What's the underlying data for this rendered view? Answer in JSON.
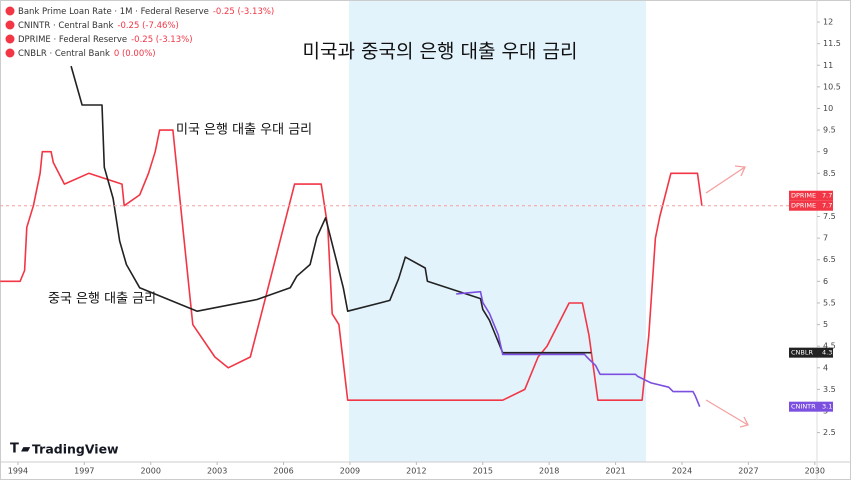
{
  "chart_data": {
    "type": "line",
    "title": "미국과 중국의 은행 대출 우대 금리",
    "legend": [
      {
        "name": "Bank Prime Loan Rate · 1M · Federal Reserve",
        "change": "-0.25 (-3.13%)",
        "color": "#f23645"
      },
      {
        "name": "CNINTR · Central Bank",
        "change": "-0.25 (-7.46%)",
        "color": "#f23645"
      },
      {
        "name": "DPRIME · Federal Reserve",
        "change": "-0.25 (-3.13%)",
        "color": "#f23645"
      },
      {
        "name": "CNBLR · Central Bank",
        "change": "0 (0.00%)",
        "color": "#f23645"
      }
    ],
    "annotations": [
      "미국 은행 대출 우대 금리",
      "중국 은행 대출 금리"
    ],
    "watermark": "TradingView",
    "xlim": [
      1993.19,
      2030.1
    ],
    "ylim": [
      1.82,
      12.51
    ],
    "xticks": [
      1994,
      1997,
      2000,
      2003,
      2006,
      2009,
      2012,
      2015,
      2018,
      2021,
      2024,
      2027,
      2030
    ],
    "yticks": [
      12,
      11.5,
      11,
      10.5,
      10,
      9.5,
      9,
      8.5,
      8,
      7.5,
      7,
      6.5,
      6,
      5.5,
      5,
      4.5,
      4,
      3.5,
      3,
      2.5
    ],
    "series": [
      {
        "name": "DPRIME",
        "color": "#f23645",
        "x": [
          1993.2,
          1994.1,
          1994.3,
          1994.4,
          1994.7,
          1995.0,
          1995.1,
          1995.5,
          1995.6,
          1996.1,
          1997.2,
          1998.7,
          1998.8,
          1999.5,
          1999.9,
          2000.2,
          2000.4,
          2001.0,
          2001.1,
          2001.5,
          2001.9,
          2002.9,
          2003.5,
          2004.5,
          2005.0,
          2005.5,
          2006.0,
          2006.5,
          2007.7,
          2008.0,
          2008.2,
          2008.5,
          2008.9,
          2015.9,
          2016.9,
          2017.5,
          2017.9,
          2018.9,
          2019.5,
          2019.8,
          2020.2,
          2022.2,
          2022.5,
          2022.8,
          2023.0,
          2023.5,
          2024.7,
          2024.9
        ],
        "values": [
          6,
          6,
          6.25,
          7.25,
          7.75,
          8.5,
          9,
          9,
          8.75,
          8.25,
          8.5,
          8.25,
          7.75,
          8,
          8.5,
          9,
          9.5,
          9.5,
          9,
          7,
          5,
          4.25,
          4,
          4.25,
          5.25,
          6.25,
          7.25,
          8.25,
          8.25,
          7.25,
          5.25,
          5,
          3.25,
          3.25,
          3.5,
          4.25,
          4.5,
          5.5,
          5.5,
          4.75,
          3.25,
          3.25,
          4.75,
          7,
          7.5,
          8.5,
          8.5,
          7.75
        ]
      },
      {
        "name": "CNBLR",
        "color": "#222222",
        "x": [
          1996.4,
          1996.9,
          1997.8,
          1997.9,
          1998.3,
          1998.6,
          1998.9,
          1999.5,
          2002.1,
          2004.8,
          2006.3,
          2006.6,
          2007.2,
          2007.5,
          2007.9,
          2008.7,
          2008.9,
          2010.8,
          2011.0,
          2011.2,
          2011.5,
          2012.4,
          2012.5,
          2014.9,
          2015.0,
          2015.3,
          2015.5,
          2015.7,
          2015.9,
          2019.9
        ],
        "values": [
          10.98,
          10.08,
          10.08,
          8.64,
          7.92,
          6.93,
          6.39,
          5.85,
          5.31,
          5.58,
          5.85,
          6.12,
          6.39,
          7.02,
          7.47,
          5.85,
          5.31,
          5.56,
          5.81,
          6.06,
          6.56,
          6.31,
          6.0,
          5.6,
          5.35,
          5.1,
          4.85,
          4.6,
          4.35,
          4.35
        ]
      },
      {
        "name": "CNINTR",
        "color": "#7b4fe0",
        "x": [
          2013.8,
          2014.9,
          2015.0,
          2015.3,
          2015.5,
          2015.7,
          2015.9,
          2019.6,
          2019.7,
          2019.9,
          2020.1,
          2020.3,
          2021.9,
          2022.0,
          2022.6,
          2023.4,
          2023.6,
          2024.5,
          2024.6,
          2024.8
        ],
        "values": [
          5.71,
          5.76,
          5.51,
          5.26,
          5.01,
          4.76,
          4.31,
          4.31,
          4.25,
          4.15,
          4.05,
          3.85,
          3.85,
          3.8,
          3.65,
          3.55,
          3.45,
          3.45,
          3.35,
          3.1
        ]
      }
    ],
    "price_tags": [
      {
        "name": "DPRIME",
        "value": 7.75,
        "color": "#f23645"
      },
      {
        "name": "DPRIME",
        "value": 7.75,
        "color": "#f23645"
      },
      {
        "name": "CNBLR",
        "value": 4.35,
        "color": "#222222"
      },
      {
        "name": "CNINTR",
        "value": 3.1,
        "color": "#7b4fe0"
      }
    ]
  }
}
